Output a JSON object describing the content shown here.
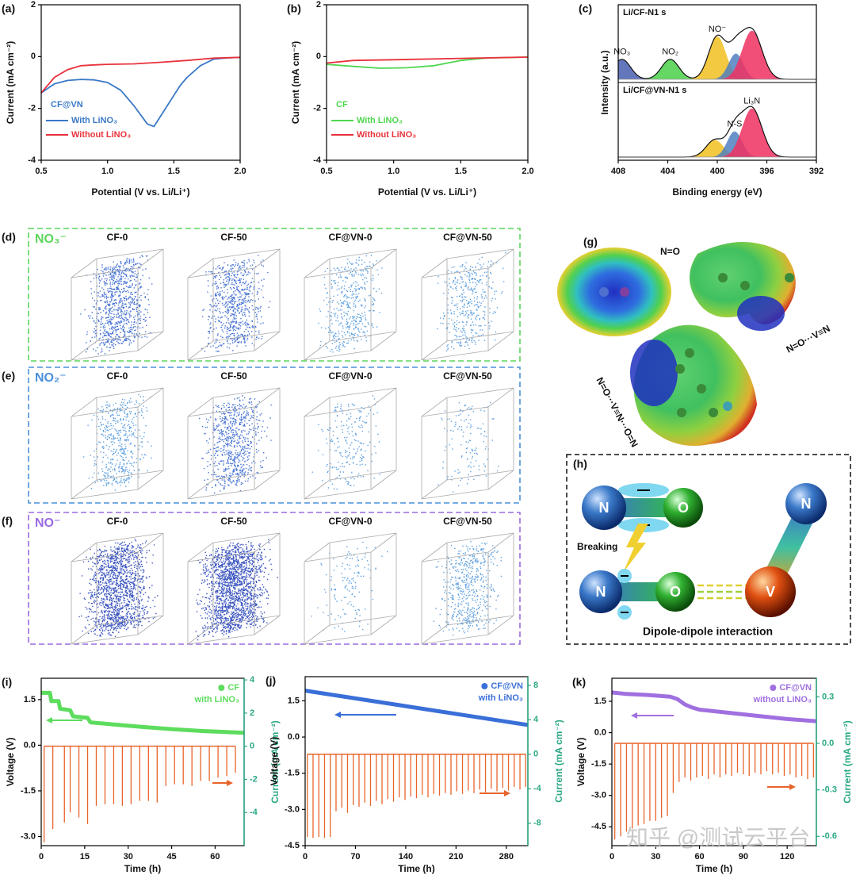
{
  "chart_data": [
    {
      "panel_label": "(a)",
      "type": "line",
      "xlabel": "Potential (V vs. Li/Li⁺)",
      "ylabel": "Current (mA cm⁻²)",
      "xlim": [
        0.5,
        2
      ],
      "xticks": [
        0.5,
        {
          "value": 1,
          "label": "1.0"
        },
        1.5,
        {
          "value": 2,
          "label": "2.0"
        }
      ],
      "ylim": [
        -4,
        2
      ],
      "yticks": [
        -4,
        -2,
        0,
        2
      ],
      "legend_style": "lines",
      "legend_title": "CF@VN",
      "series": [
        {
          "name": "With LiNO₃",
          "color": "#3a78c8",
          "x": [
            0.5,
            0.6,
            0.7,
            0.8,
            0.9,
            1.0,
            1.1,
            1.2,
            1.3,
            1.35,
            1.4,
            1.5,
            1.55,
            1.6,
            1.7,
            1.8,
            1.9,
            2.0
          ],
          "values": [
            -1.4,
            -1.05,
            -0.92,
            -0.88,
            -0.9,
            -1.0,
            -1.3,
            -1.9,
            -2.6,
            -2.7,
            -2.3,
            -1.5,
            -1.1,
            -0.8,
            -0.35,
            -0.1,
            -0.05,
            -0.03
          ]
        },
        {
          "name": "Without LiNO₃",
          "color": "#e8323c",
          "x": [
            0.5,
            0.6,
            0.7,
            0.8,
            0.9,
            1.0,
            1.2,
            1.4,
            1.6,
            1.8,
            2.0
          ],
          "values": [
            -1.4,
            -0.8,
            -0.5,
            -0.35,
            -0.32,
            -0.3,
            -0.28,
            -0.22,
            -0.15,
            -0.06,
            -0.03
          ]
        }
      ]
    },
    {
      "panel_label": "(b)",
      "type": "line",
      "xlabel": "Potential (V vs. Li/Li⁺)",
      "ylabel": "Current (mA cm⁻²)",
      "xlim": [
        0.5,
        2
      ],
      "xticks": [
        0.5,
        {
          "value": 1,
          "label": "1.0"
        },
        1.5,
        {
          "value": 2,
          "label": "2.0"
        }
      ],
      "ylim": [
        -4,
        2
      ],
      "yticks": [
        -4,
        -2,
        0,
        2
      ],
      "legend_style": "lines",
      "legend_title": "CF",
      "series": [
        {
          "name": "With LiNO₃",
          "color": "#4fd64f",
          "x": [
            0.5,
            0.7,
            0.9,
            1.1,
            1.3,
            1.5,
            1.7,
            2.0
          ],
          "values": [
            -0.3,
            -0.38,
            -0.45,
            -0.43,
            -0.35,
            -0.15,
            -0.05,
            -0.02
          ]
        },
        {
          "name": "Without LiNO₃",
          "color": "#e8323c",
          "x": [
            0.5,
            0.7,
            1.0,
            1.5,
            2.0
          ],
          "values": [
            -0.25,
            -0.15,
            -0.12,
            -0.07,
            -0.02
          ]
        }
      ]
    },
    {
      "panel_label": "(c)",
      "type": "xps",
      "xlabel": "Binding energy (eV)",
      "ylabel": "Intensity (a.u.)",
      "xlim": [
        408,
        392
      ],
      "xticks": [
        408,
        404,
        400,
        396,
        392
      ],
      "panels": [
        {
          "label": "Li/CF-N1 s",
          "peaks": [
            {
              "name": "NO₃",
              "center": 407.7,
              "height": 0.35,
              "width": 0.7,
              "color": "#4a5fb0"
            },
            {
              "name": "NO₂",
              "center": 403.8,
              "height": 0.35,
              "width": 0.7,
              "color": "#4ad04a"
            },
            {
              "name": "NO⁻",
              "center": 400.0,
              "height": 0.75,
              "width": 0.7,
              "color": "#f0c020"
            },
            {
              "center": 398.5,
              "height": 0.45,
              "width": 0.6,
              "color": "#5080c0"
            },
            {
              "center": 397.2,
              "height": 0.85,
              "width": 0.8,
              "color": "#f03060"
            }
          ]
        },
        {
          "label": "Li/CF@VN-N1 s",
          "peaks": [
            {
              "center": 400.2,
              "height": 0.3,
              "width": 0.7,
              "color": "#f0c020"
            },
            {
              "name": "N-S",
              "center": 398.6,
              "height": 0.45,
              "width": 0.6,
              "color": "#5080c0"
            },
            {
              "name": "Li₃N",
              "center": 397.2,
              "height": 0.85,
              "width": 0.8,
              "color": "#f03060"
            }
          ]
        }
      ]
    },
    {
      "panel_label": "(i)",
      "type": "line",
      "xlabel": "Time (h)",
      "ylabel": "Voltage (V)",
      "y2label": "Current (mA cm⁻²)",
      "y2color": "#2aa884",
      "xlim": [
        0,
        70
      ],
      "xticks": [
        0,
        15,
        30,
        45,
        60
      ],
      "ylim": [
        -3.3,
        2.2
      ],
      "yticks": [
        {
          "value": -3,
          "label": "-3.0"
        },
        -1.5,
        {
          "value": 0,
          "label": "0.0"
        },
        1.5
      ],
      "y2lim": [
        -6,
        4.1
      ],
      "y2ticks": [
        -4,
        -2,
        0,
        2,
        4
      ],
      "legend_style": "marker",
      "legend_note": "with LiNO₃",
      "series": [
        {
          "name": "CF",
          "color": "#5ddc5d",
          "x": [
            0,
            3,
            3.5,
            6,
            6.5,
            10,
            11,
            16,
            17,
            25,
            35,
            45,
            55,
            70
          ],
          "values": [
            1.72,
            1.72,
            1.45,
            1.45,
            1.2,
            1.15,
            0.95,
            0.9,
            0.75,
            0.68,
            0.6,
            0.53,
            0.47,
            0.41
          ]
        },
        {
          "kind": "spike",
          "axis": "y2",
          "color": "#e8642a",
          "x": [
            1,
            4,
            8,
            10,
            13,
            16,
            19,
            22,
            25,
            28,
            31,
            34,
            37,
            40,
            43,
            46,
            49,
            52,
            55,
            58,
            61,
            64,
            67
          ],
          "values": [
            -5.8,
            -5.0,
            -4.6,
            -4.0,
            -4.3,
            -4.7,
            -3.6,
            -3.5,
            -3.5,
            -3.6,
            -3.5,
            -3.3,
            -3.3,
            -3.4,
            -2.4,
            -2.3,
            -2.3,
            -2.4,
            -2.1,
            -2.1,
            -1.9,
            -1.8,
            -1.6
          ]
        }
      ]
    },
    {
      "panel_label": "(j)",
      "type": "line",
      "xlabel": "Time (h)",
      "ylabel": "Voltage (V)",
      "y2label": "Current (mA cm⁻²)",
      "y2color": "#2aa884",
      "xlim": [
        0,
        310
      ],
      "xticks": [
        0,
        70,
        140,
        210,
        280
      ],
      "ylim": [
        -4.5,
        2.5
      ],
      "yticks": [
        -4.5,
        {
          "value": -3,
          "label": "-3.0"
        },
        -1.5,
        {
          "value": 0,
          "label": "0.0"
        },
        1.5
      ],
      "y2lim": [
        -10.6,
        9
      ],
      "y2ticks": [
        -8,
        -4,
        0,
        4,
        8
      ],
      "legend_style": "marker",
      "legend_note": "with LiNO₃",
      "series": [
        {
          "name": "CF@VN",
          "color": "#3a6fd8",
          "x": [
            0,
            310
          ],
          "values": [
            1.92,
            0.5
          ]
        },
        {
          "kind": "spike",
          "axis": "y2",
          "color": "#e8642a",
          "x": [
            3,
            11,
            19,
            27,
            35,
            43,
            51,
            59,
            67,
            75,
            83,
            91,
            99,
            107,
            115,
            123,
            131,
            139,
            147,
            155,
            163,
            171,
            179,
            187,
            195,
            203,
            211,
            219,
            227,
            235,
            243,
            251,
            259,
            267,
            275,
            283,
            291,
            299,
            307
          ],
          "values": [
            -9.6,
            -9.7,
            -9.6,
            -9.7,
            -9.6,
            -6.6,
            -6.2,
            -6.8,
            -5.9,
            -6.1,
            -5.6,
            -6.0,
            -5.4,
            -5.8,
            -5.2,
            -5.5,
            -5.0,
            -5.3,
            -4.9,
            -5.1,
            -4.7,
            -5.0,
            -4.6,
            -4.8,
            -4.5,
            -4.7,
            -4.3,
            -4.6,
            -4.2,
            -4.5,
            -4.1,
            -4.4,
            -4.0,
            -4.3,
            -3.9,
            -4.2,
            -3.8,
            -4.1,
            -3.8
          ]
        }
      ]
    },
    {
      "panel_label": "(k)",
      "type": "line",
      "xlabel": "Time (h)",
      "ylabel": "Voltage (V)",
      "y2label": "Current (mA cm⁻²)",
      "y2color": "#2aa884",
      "xlim": [
        0,
        140
      ],
      "xticks": [
        0,
        30,
        60,
        90,
        120
      ],
      "ylim": [
        -5.4,
        2.6
      ],
      "yticks": [
        -4.5,
        {
          "value": -3,
          "label": "-3.0"
        },
        -1.5,
        {
          "value": 0,
          "label": "0.0"
        },
        1.5
      ],
      "y2lim": [
        -0.66,
        0.42
      ],
      "y2ticks": [
        -0.6,
        -0.3,
        {
          "value": 0,
          "label": "0.0"
        },
        0.3
      ],
      "legend_style": "marker",
      "legend_note": "without LiNO₃",
      "series": [
        {
          "name": "CF@VN",
          "color": "#a070e0",
          "x": [
            0,
            10,
            25,
            40,
            45,
            50,
            55,
            60,
            80,
            100,
            120,
            140
          ],
          "values": [
            1.92,
            1.85,
            1.8,
            1.72,
            1.6,
            1.35,
            1.2,
            1.1,
            0.95,
            0.8,
            0.65,
            0.55
          ]
        },
        {
          "kind": "spike",
          "axis": "y2",
          "color": "#e8642a",
          "x": [
            2,
            6,
            10,
            14,
            18,
            22,
            26,
            30,
            34,
            38,
            42,
            46,
            50,
            54,
            58,
            62,
            66,
            70,
            74,
            78,
            82,
            86,
            90,
            94,
            98,
            102,
            106,
            110,
            114,
            118,
            122,
            126,
            130,
            134,
            138
          ],
          "values": [
            -0.62,
            -0.6,
            -0.57,
            -0.55,
            -0.53,
            -0.52,
            -0.5,
            -0.5,
            -0.48,
            -0.47,
            -0.32,
            -0.25,
            -0.22,
            -0.24,
            -0.22,
            -0.21,
            -0.23,
            -0.2,
            -0.22,
            -0.2,
            -0.21,
            -0.19,
            -0.2,
            -0.21,
            -0.19,
            -0.2,
            -0.18,
            -0.2,
            -0.19,
            -0.21,
            -0.2,
            -0.22,
            -0.21,
            -0.23,
            -0.22
          ]
        }
      ]
    }
  ],
  "panel_d_f": {
    "rows": [
      {
        "letter": "(d)",
        "species": "NO₃⁻",
        "color": "#5cd65c",
        "columns": [
          "CF-0",
          "CF-50",
          "CF@VN-0",
          "CF@VN-50"
        ]
      },
      {
        "letter": "(e)",
        "species": "NO₂⁻",
        "color": "#4a90d9",
        "columns": [
          "CF-0",
          "CF-50",
          "CF@VN-0",
          "CF@VN-50"
        ]
      },
      {
        "letter": "(f)",
        "species": "NO⁻",
        "color": "#9a6ae0",
        "columns": [
          "CF-0",
          "CF-50",
          "CF@VN-0",
          "CF@VN-50"
        ]
      }
    ]
  },
  "panel_g": {
    "letter": "(g)",
    "labels": [
      "N=O",
      "N=O···V≡N",
      "N=O···V≡N···O=N"
    ]
  },
  "panel_h": {
    "letter": "(h)",
    "atoms": [
      "N",
      "O",
      "N",
      "O",
      "V",
      "N"
    ],
    "breaking": "Breaking",
    "interaction": "Dipole-dipole interaction"
  },
  "watermark": "知乎 @测试云平台"
}
